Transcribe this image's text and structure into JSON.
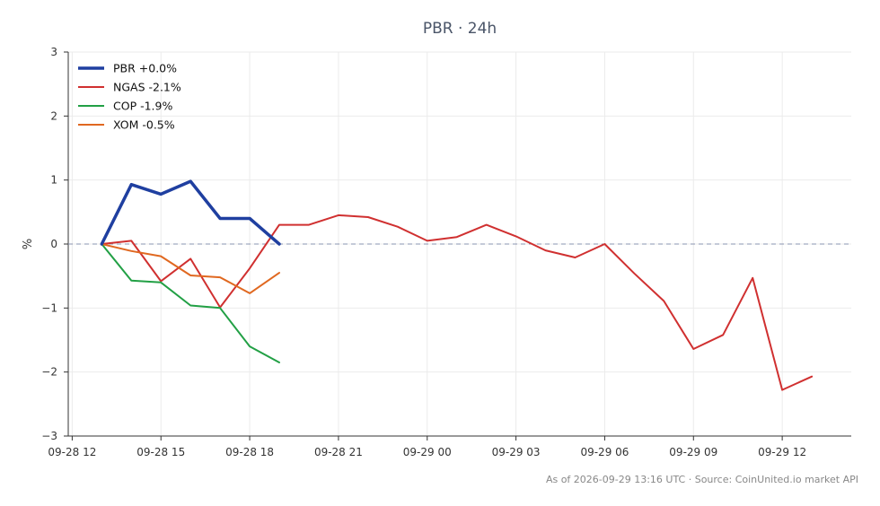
{
  "chart_data": {
    "type": "line",
    "title": "PBR · 24h",
    "xlabel": "",
    "ylabel": "%",
    "xlim": [
      "2026-09-28 11:52",
      "2026-09-29 14:20"
    ],
    "ylim": [
      -3,
      3
    ],
    "x_ticks": [
      "09-28 12",
      "09-28 15",
      "09-28 18",
      "09-28 21",
      "09-29 00",
      "09-29 03",
      "09-29 06",
      "09-29 09",
      "09-29 12"
    ],
    "y_ticks": [
      "−3",
      "−2",
      "−1",
      "0",
      "1",
      "2",
      "3"
    ],
    "y_tick_values": [
      -3,
      -2,
      -1,
      0,
      1,
      2,
      3
    ],
    "zero_line": 0,
    "grid": true,
    "legend_position": "top-left",
    "series": [
      {
        "name": "PBR +0.0%",
        "color": "#1f3fa0",
        "emphasis": true,
        "x": [
          "2026-09-28 13:00",
          "2026-09-28 14:00",
          "2026-09-28 15:00",
          "2026-09-28 16:00",
          "2026-09-28 17:00",
          "2026-09-28 18:00",
          "2026-09-28 19:00"
        ],
        "y": [
          0.0,
          0.93,
          0.78,
          0.98,
          0.4,
          0.4,
          0.0
        ]
      },
      {
        "name": "NGAS -2.1%",
        "color": "#d03030",
        "emphasis": false,
        "x": [
          "2026-09-28 13:00",
          "2026-09-28 14:00",
          "2026-09-28 15:00",
          "2026-09-28 16:00",
          "2026-09-28 17:00",
          "2026-09-28 18:00",
          "2026-09-28 19:00",
          "2026-09-28 20:00",
          "2026-09-28 21:00",
          "2026-09-28 22:00",
          "2026-09-28 23:00",
          "2026-09-29 00:00",
          "2026-09-29 01:00",
          "2026-09-29 02:00",
          "2026-09-29 03:00",
          "2026-09-29 04:00",
          "2026-09-29 05:00",
          "2026-09-29 06:00",
          "2026-09-29 07:00",
          "2026-09-29 08:00",
          "2026-09-29 09:00",
          "2026-09-29 10:00",
          "2026-09-29 11:00",
          "2026-09-29 12:00",
          "2026-09-29 13:00"
        ],
        "y": [
          0.0,
          0.05,
          -0.58,
          -0.23,
          -0.99,
          -0.38,
          0.3,
          0.3,
          0.45,
          0.42,
          0.27,
          0.05,
          0.11,
          0.3,
          0.12,
          -0.1,
          -0.21,
          0.0,
          -0.46,
          -0.89,
          -1.64,
          -1.42,
          -0.53,
          -2.28,
          -2.07
        ]
      },
      {
        "name": "COP -1.9%",
        "color": "#22a045",
        "emphasis": false,
        "x": [
          "2026-09-28 13:00",
          "2026-09-28 14:00",
          "2026-09-28 15:00",
          "2026-09-28 16:00",
          "2026-09-28 17:00",
          "2026-09-28 18:00",
          "2026-09-28 19:00"
        ],
        "y": [
          0.0,
          -0.57,
          -0.6,
          -0.96,
          -1.0,
          -1.6,
          -1.85
        ]
      },
      {
        "name": "XOM -0.5%",
        "color": "#e06820",
        "emphasis": false,
        "x": [
          "2026-09-28 13:00",
          "2026-09-28 14:00",
          "2026-09-28 15:00",
          "2026-09-28 16:00",
          "2026-09-28 17:00",
          "2026-09-28 18:00",
          "2026-09-28 19:00"
        ],
        "y": [
          0.0,
          -0.11,
          -0.19,
          -0.49,
          -0.52,
          -0.77,
          -0.45
        ]
      }
    ]
  },
  "footer": "As of 2026-09-29 13:16 UTC · Source: CoinUnited.io market API"
}
